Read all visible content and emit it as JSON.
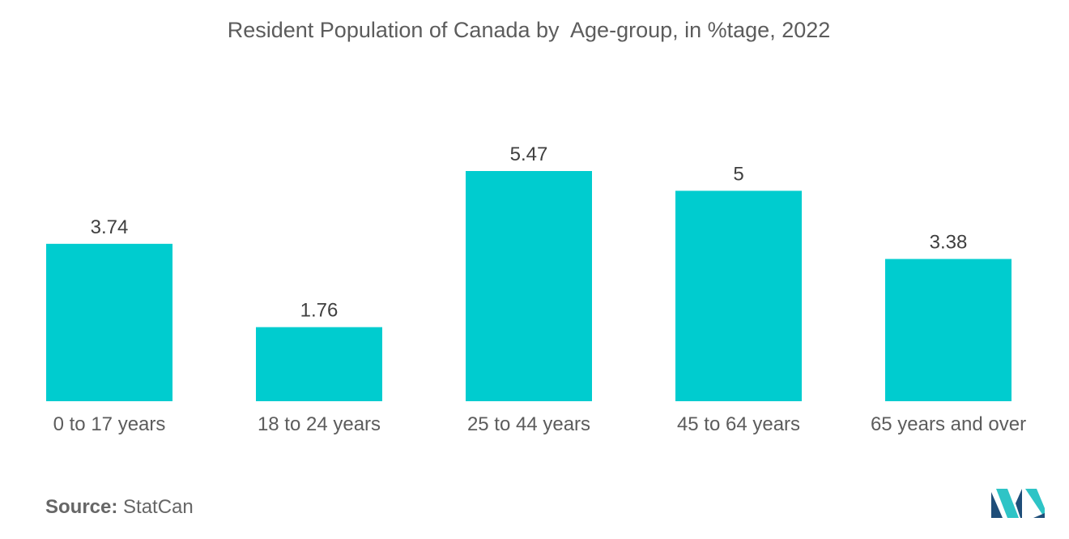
{
  "chart_data": {
    "type": "bar",
    "title": "Resident Population of Canada by  Age-group, in %tage, 2022",
    "categories": [
      "0 to 17 years",
      "18 to 24 years",
      "25 to 44 years",
      "45 to 64 years",
      "65 years and over"
    ],
    "values": [
      3.74,
      1.76,
      5.47,
      5,
      3.38
    ],
    "value_labels": [
      "3.74",
      "1.76",
      "5.47",
      "5",
      "3.38"
    ],
    "xlabel": "",
    "ylabel": "",
    "ylim": [
      0,
      5.47
    ],
    "grid": false,
    "legend": "none",
    "bar_color": "#00cccf"
  },
  "footer": {
    "source_label": "Source:",
    "source_value": "StatCan"
  },
  "logo": {
    "icon": "mordor-intelligence-logo-icon",
    "colors": [
      "#1f4e79",
      "#2ec4c6"
    ]
  }
}
